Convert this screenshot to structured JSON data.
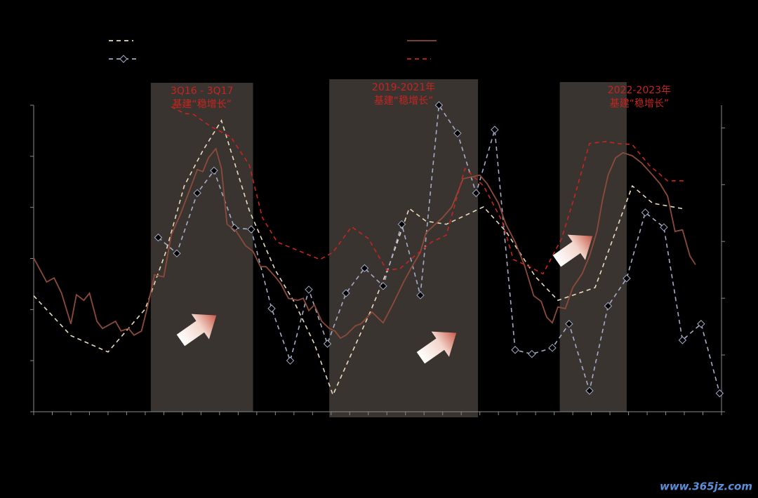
{
  "chart_data": {
    "type": "line",
    "xlim": [
      0,
      37
    ],
    "xticks": [
      0,
      1,
      2,
      3,
      4,
      5,
      6,
      7,
      8,
      9,
      10,
      11,
      12,
      13,
      14,
      15,
      16,
      17,
      18,
      19,
      20,
      21,
      22,
      23,
      24,
      25,
      26,
      27,
      28,
      29,
      30,
      31,
      32,
      33,
      34,
      35,
      36,
      37
    ],
    "ylim": [
      0,
      6
    ],
    "yticks": [
      0,
      1,
      2,
      3,
      4,
      5,
      6
    ],
    "y2lim": [
      0,
      5.4
    ],
    "y2ticks": [
      0,
      1,
      2,
      3,
      4,
      5
    ],
    "bands": [
      {
        "x": [
          6.3,
          11.8
        ],
        "label": [
          "3Q16 - 3Q17",
          "基建“稳增长”"
        ],
        "label_color": "#c8241f"
      },
      {
        "x": [
          15.9,
          23.9
        ],
        "label": [
          "2019-2021年",
          "基建“稳增长”"
        ],
        "label_color": "#c8241f"
      },
      {
        "x": [
          28.3,
          31.9
        ],
        "label": [
          "2022-2023年",
          "基建“稳增长”"
        ],
        "label_color": "#c8241f"
      }
    ],
    "series": [
      {
        "color": "#eadcbc",
        "dashed": true,
        "marker": false,
        "x": [
          0.0,
          2.0,
          4.0,
          6.0,
          7.1,
          8.1,
          9.1,
          10.1,
          11.6,
          13.0,
          14.0,
          15.1,
          16.1,
          18.1,
          19.1,
          20.2,
          21.1,
          22.2,
          24.2,
          25.4,
          27.0,
          28.2,
          30.2,
          32.2,
          33.3,
          35.0
        ],
        "values": [
          2.27,
          1.49,
          1.17,
          2.01,
          3.12,
          4.42,
          5.11,
          5.7,
          3.94,
          2.77,
          2.16,
          1.33,
          0.33,
          1.95,
          2.84,
          3.98,
          3.73,
          3.67,
          4.01,
          3.53,
          2.64,
          2.18,
          2.43,
          4.42,
          4.08,
          3.97
        ]
      },
      {
        "color": "#a4acc8",
        "dashed": true,
        "marker": true,
        "x": [
          6.7,
          7.7,
          8.8,
          9.7,
          10.8,
          11.7,
          12.8,
          13.8,
          14.8,
          15.8,
          16.8,
          17.8,
          18.8,
          19.8,
          20.8,
          21.8,
          22.8,
          23.8,
          24.8,
          25.9,
          26.8,
          27.9,
          28.8,
          29.9,
          30.9,
          31.9,
          32.9,
          33.9,
          34.9,
          35.9,
          36.9
        ],
        "values": [
          3.41,
          3.1,
          4.28,
          4.72,
          3.6,
          3.57,
          2.02,
          1.0,
          2.39,
          1.33,
          2.32,
          2.81,
          2.46,
          3.67,
          2.28,
          6.0,
          5.45,
          4.28,
          5.52,
          1.21,
          1.13,
          1.25,
          1.72,
          0.41,
          2.07,
          2.61,
          3.9,
          3.61,
          1.4,
          1.72,
          0.36
        ]
      },
      {
        "color": "#8c4a3a",
        "dashed": false,
        "marker": false,
        "x": [
          0.0,
          0.7,
          1.1,
          1.5,
          2.0,
          2.3,
          2.7,
          3.0,
          3.4,
          3.7,
          4.4,
          4.7,
          5.1,
          5.4,
          5.8,
          6.1,
          6.5,
          7.0,
          7.4,
          7.9,
          8.4,
          8.8,
          9.1,
          9.4,
          9.8,
          10.1,
          10.4,
          10.9,
          11.4,
          11.8,
          12.2,
          12.5,
          13.0,
          13.3,
          13.7,
          14.2,
          14.5,
          14.8,
          15.1,
          15.5,
          15.9,
          16.2,
          16.5,
          16.8,
          17.3,
          17.6,
          18.2,
          18.6,
          18.8,
          19.3,
          19.9,
          20.3,
          20.8,
          21.1,
          21.6,
          22.0,
          22.5,
          23.1,
          23.6,
          24.0,
          24.4,
          25.0,
          25.4,
          25.9,
          26.4,
          26.9,
          27.3,
          27.6,
          27.9,
          28.2,
          28.6,
          29.0,
          29.5,
          29.9,
          30.3,
          30.6,
          30.9,
          31.3,
          31.7,
          32.2,
          32.7,
          33.3,
          33.7,
          34.1,
          34.5,
          34.9,
          35.3,
          35.6
        ],
        "values": [
          3.01,
          2.54,
          2.62,
          2.32,
          1.72,
          2.29,
          2.18,
          2.32,
          1.77,
          1.63,
          1.77,
          1.58,
          1.63,
          1.5,
          1.58,
          2.02,
          2.68,
          2.64,
          3.46,
          3.87,
          4.35,
          4.74,
          4.7,
          4.97,
          5.15,
          4.76,
          3.67,
          3.53,
          3.25,
          3.14,
          2.84,
          2.84,
          2.64,
          2.5,
          2.22,
          2.18,
          2.22,
          1.98,
          2.09,
          1.77,
          1.63,
          1.58,
          1.44,
          1.5,
          1.68,
          1.72,
          1.95,
          1.81,
          1.74,
          2.09,
          2.54,
          2.81,
          3.12,
          3.5,
          3.67,
          3.8,
          4.01,
          4.56,
          4.6,
          4.63,
          4.46,
          4.08,
          3.67,
          3.32,
          2.87,
          2.27,
          2.16,
          1.85,
          1.74,
          2.05,
          2.02,
          2.43,
          2.7,
          3.05,
          3.53,
          4.15,
          4.63,
          4.97,
          5.07,
          5.01,
          4.87,
          4.63,
          4.46,
          4.22,
          3.53,
          3.56,
          3.05,
          2.88
        ]
      },
      {
        "color": "#c8241f",
        "dashed": true,
        "marker": false,
        "x": [
          7.4,
          8.1,
          8.6,
          9.5,
          10.6,
          11.6,
          12.3,
          13.1,
          14.0,
          15.4,
          16.1,
          17.1,
          18.0,
          19.0,
          19.7,
          20.5,
          21.4,
          22.2,
          23.2,
          24.2,
          25.2,
          25.8,
          26.5,
          27.4,
          28.4,
          29.1,
          29.9,
          30.8,
          31.4,
          32.2,
          33.1,
          34.1,
          35.1
        ],
        "values": [
          5.97,
          5.84,
          5.82,
          5.59,
          5.38,
          4.83,
          3.8,
          3.32,
          3.19,
          2.98,
          3.12,
          3.62,
          3.39,
          2.77,
          2.8,
          3.05,
          3.32,
          3.46,
          4.76,
          4.42,
          3.73,
          2.98,
          2.87,
          2.7,
          3.39,
          4.22,
          5.25,
          5.29,
          5.25,
          5.23,
          4.83,
          4.52,
          4.52
        ]
      }
    ]
  },
  "watermark": "www.365jz.com"
}
